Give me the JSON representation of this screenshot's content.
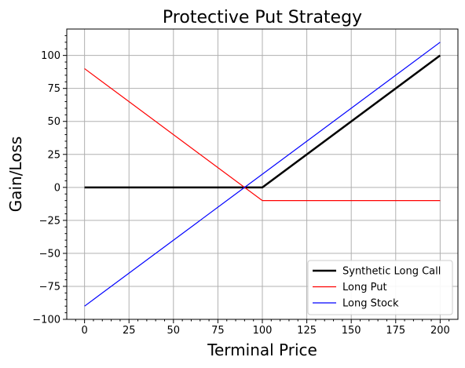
{
  "chart_data": {
    "type": "line",
    "title": "Protective Put Strategy",
    "xlabel": "Terminal Price",
    "ylabel": "Gain/Loss",
    "xlim": [
      -10,
      210
    ],
    "ylim": [
      -100,
      120
    ],
    "xticks": [
      0,
      25,
      50,
      75,
      100,
      125,
      150,
      175,
      200
    ],
    "yticks": [
      -100,
      -75,
      -50,
      -25,
      0,
      25,
      50,
      75,
      100
    ],
    "xtick_labels": [
      "0",
      "25",
      "50",
      "75",
      "100",
      "125",
      "150",
      "175",
      "200"
    ],
    "ytick_labels": [
      "−100",
      "−75",
      "−50",
      "−25",
      "0",
      "25",
      "50",
      "75",
      "100"
    ],
    "grid": true,
    "legend_position": "lower-right",
    "series": [
      {
        "name": "Synthetic Long Call",
        "color": "#000000",
        "x": [
          0,
          100,
          200
        ],
        "y": [
          0,
          0,
          100
        ]
      },
      {
        "name": "Long Put",
        "color": "#ff0000",
        "x": [
          0,
          100,
          200
        ],
        "y": [
          90,
          -10,
          -10
        ]
      },
      {
        "name": "Long Stock",
        "color": "#0000ff",
        "x": [
          0,
          200
        ],
        "y": [
          -90,
          110
        ]
      }
    ]
  }
}
